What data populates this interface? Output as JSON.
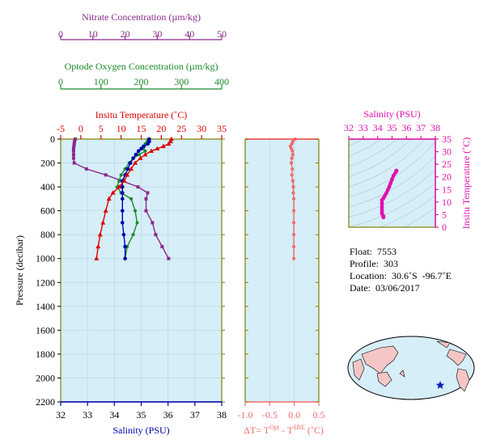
{
  "colors": {
    "nitrate": "#8b2a8b",
    "oxygen": "#1a8a2a",
    "temperature": "#e00000",
    "salinity": "#0000b0",
    "delta": "#f26b6b",
    "ts_axis": "#e010b0",
    "plot_bg": "#d6eef8",
    "axis_olive": "#808000",
    "land": "#f4c6c6",
    "ocean": "#d6eef8"
  },
  "info": {
    "float": "Float:  7553",
    "profile": "Profile:  303",
    "location": "Location:  30.6˚S  -96.7˚E",
    "date": "Date:  03/06/2017"
  },
  "chart_data": [
    {
      "type": "line",
      "panel": "profile",
      "ylabel": "Pressure (decibar)",
      "ylim": [
        2200,
        0
      ],
      "yticks": [
        0,
        200,
        400,
        600,
        800,
        1000,
        1200,
        1400,
        1600,
        1800,
        2000,
        2200
      ],
      "axes": {
        "nitrate": {
          "label": "Nitrate Concentration (µm/kg)",
          "lim": [
            0,
            50
          ],
          "ticks": [
            0,
            10,
            20,
            30,
            40,
            50
          ]
        },
        "oxygen": {
          "label": "Optode Oxygen Concentration (µm/kg)",
          "lim": [
            0,
            400
          ],
          "ticks": [
            0,
            100,
            200,
            300,
            400
          ]
        },
        "temperature": {
          "label": "Insitu Temperature (˚C)",
          "lim": [
            -5,
            35
          ],
          "ticks": [
            -5,
            0,
            5,
            10,
            15,
            20,
            25,
            30,
            35
          ]
        },
        "salinity": {
          "label": "Salinity (PSU)",
          "lim": [
            32,
            38
          ],
          "ticks": [
            32,
            33,
            34,
            35,
            36,
            37,
            38
          ]
        }
      },
      "series": [
        {
          "axis": "temperature",
          "x": [
            22.5,
            22.3,
            21.8,
            20.5,
            19.0,
            17.5,
            16.0,
            14.8,
            13.5,
            12.5,
            11.5,
            10.8,
            9.5,
            8.0,
            7.0,
            6.2,
            5.5,
            4.8,
            4.3,
            3.9
          ],
          "y": [
            0,
            20,
            40,
            60,
            80,
            100,
            130,
            160,
            200,
            250,
            300,
            350,
            400,
            450,
            500,
            600,
            700,
            800,
            900,
            1000
          ]
        },
        {
          "axis": "salinity",
          "x": [
            35.3,
            35.3,
            35.25,
            35.1,
            35.0,
            34.9,
            34.8,
            34.7,
            34.6,
            34.5,
            34.4,
            34.3,
            34.3,
            34.3,
            34.3,
            34.3,
            34.3,
            34.35,
            34.4,
            34.4
          ],
          "y": [
            0,
            20,
            40,
            60,
            80,
            100,
            130,
            160,
            200,
            250,
            300,
            350,
            400,
            450,
            500,
            600,
            700,
            800,
            900,
            1000
          ]
        },
        {
          "axis": "oxygen",
          "x": [
            218,
            215,
            210,
            205,
            205,
            210,
            195,
            180,
            170,
            160,
            150,
            145,
            140,
            150,
            175,
            185,
            190,
            180,
            165,
            160
          ],
          "y": [
            0,
            20,
            40,
            60,
            80,
            100,
            130,
            160,
            200,
            250,
            300,
            350,
            400,
            450,
            500,
            600,
            700,
            800,
            900,
            1000
          ]
        },
        {
          "axis": "nitrate",
          "x": [
            4.5,
            4.3,
            4.2,
            4.1,
            4.0,
            4.0,
            4.0,
            4.0,
            4.2,
            8.0,
            14.0,
            19.0,
            24.0,
            27.0,
            26.5,
            26.5,
            28.5,
            29.5,
            31.5,
            33.5
          ],
          "y": [
            0,
            20,
            40,
            60,
            80,
            100,
            130,
            160,
            200,
            250,
            300,
            350,
            400,
            450,
            500,
            600,
            700,
            800,
            900,
            1000
          ]
        }
      ]
    },
    {
      "type": "line",
      "panel": "delta",
      "xlabel": "ΔT= T^Opt - T^SBE (˚C)",
      "xlim": [
        -1.0,
        0.5
      ],
      "xticks": [
        -1.0,
        -0.5,
        0.0,
        0.5
      ],
      "ylim": [
        2200,
        0
      ],
      "series": [
        {
          "x": [
            0.02,
            -0.03,
            -0.05,
            -0.08,
            -0.06,
            -0.04,
            -0.03,
            -0.05,
            -0.06,
            -0.04,
            -0.05,
            -0.03,
            -0.02,
            -0.02,
            -0.01,
            -0.01,
            -0.01,
            -0.01,
            -0.01,
            -0.01
          ],
          "y": [
            0,
            20,
            40,
            60,
            80,
            100,
            130,
            160,
            200,
            250,
            300,
            350,
            400,
            450,
            500,
            600,
            700,
            800,
            900,
            1000
          ]
        }
      ]
    },
    {
      "type": "scatter",
      "panel": "ts",
      "xlabel": "Salinity (PSU)",
      "ylabel": "Insitu Temperature (˚C)",
      "xlim": [
        32,
        38
      ],
      "ylim": [
        0,
        35
      ],
      "xticks": [
        32,
        33,
        34,
        35,
        36,
        37,
        38
      ],
      "yticks": [
        0,
        5,
        10,
        15,
        20,
        25,
        30,
        35
      ],
      "series": [
        {
          "x": [
            35.3,
            35.3,
            35.25,
            35.1,
            35.0,
            34.9,
            34.8,
            34.7,
            34.6,
            34.5,
            34.4,
            34.3,
            34.3,
            34.3,
            34.3,
            34.3,
            34.3,
            34.35,
            34.4,
            34.4
          ],
          "y": [
            22.5,
            22.3,
            21.8,
            20.5,
            19.0,
            17.5,
            16.0,
            14.8,
            13.5,
            12.5,
            11.5,
            10.8,
            9.5,
            8.0,
            7.0,
            6.2,
            5.5,
            4.8,
            4.3,
            3.9
          ]
        }
      ]
    }
  ]
}
